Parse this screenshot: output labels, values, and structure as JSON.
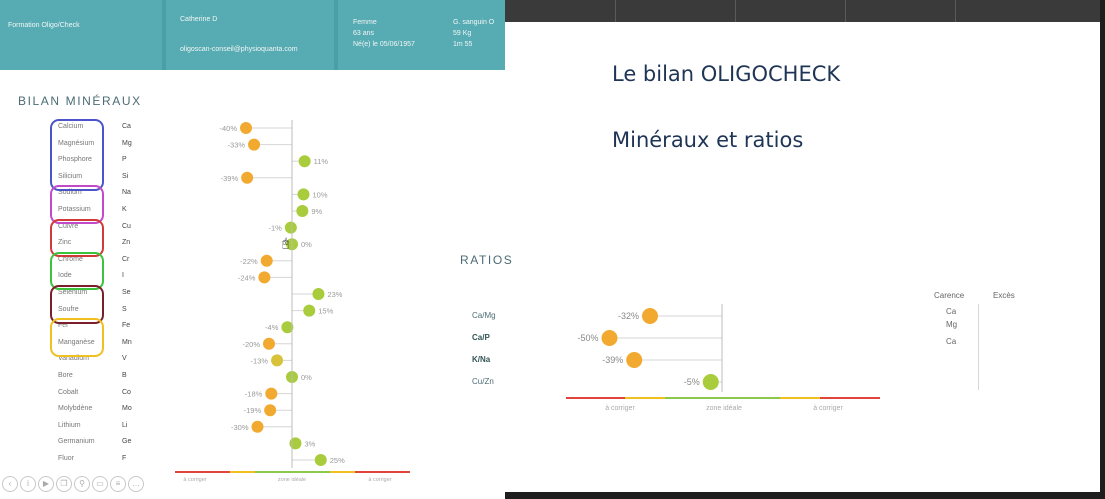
{
  "header": {
    "formation": "Formation Oligo/Check",
    "name": "Catherine D",
    "email": "oligoscan-conseil@physioquanta.com",
    "sex": "Femme",
    "age": "63 ans",
    "born": "Né(e) le 05/06/1957",
    "blood": "G. sanguin O",
    "weight": "59 Kg",
    "height": "1m 55"
  },
  "slide": {
    "title": "Le bilan OLIGOCHECK",
    "subtitle": "Minéraux et ratios"
  },
  "minerals": {
    "title": "BILAN MINÉRAUX",
    "scale_labels": [
      "à corriger",
      "zone idéale",
      "à corriger"
    ],
    "items": [
      {
        "name": "Calcium",
        "symbol": "Ca",
        "value": -40,
        "label": "-40%"
      },
      {
        "name": "Magnésium",
        "symbol": "Mg",
        "value": -33,
        "label": "-33%"
      },
      {
        "name": "Phosphore",
        "symbol": "P",
        "value": 11,
        "label": "11%"
      },
      {
        "name": "Silicium",
        "symbol": "Si",
        "value": -39,
        "label": "-39%"
      },
      {
        "name": "Sodium",
        "symbol": "Na",
        "value": 10,
        "label": "10%"
      },
      {
        "name": "Potassium",
        "symbol": "K",
        "value": 9,
        "label": "9%"
      },
      {
        "name": "Cuivre",
        "symbol": "Cu",
        "value": -1,
        "label": "-1%"
      },
      {
        "name": "Zinc",
        "symbol": "Zn",
        "value": 0,
        "label": "0%"
      },
      {
        "name": "Chrome",
        "symbol": "Cr",
        "value": -22,
        "label": "-22%"
      },
      {
        "name": "Iode",
        "symbol": "I",
        "value": -24,
        "label": "-24%"
      },
      {
        "name": "Sélénium",
        "symbol": "Se",
        "value": 23,
        "label": "23%"
      },
      {
        "name": "Soufre",
        "symbol": "S",
        "value": 15,
        "label": "15%"
      },
      {
        "name": "Fer",
        "symbol": "Fe",
        "value": -4,
        "label": "-4%"
      },
      {
        "name": "Manganèse",
        "symbol": "Mn",
        "value": -20,
        "label": "-20%"
      },
      {
        "name": "Vanadium",
        "symbol": "V",
        "value": -13,
        "label": "-13%"
      },
      {
        "name": "Bore",
        "symbol": "B",
        "value": 0,
        "label": "0%"
      },
      {
        "name": "Cobalt",
        "symbol": "Co",
        "value": -18,
        "label": "-18%"
      },
      {
        "name": "Molybdène",
        "symbol": "Mo",
        "value": -19,
        "label": "-19%"
      },
      {
        "name": "Lithium",
        "symbol": "Li",
        "value": -30,
        "label": "-30%"
      },
      {
        "name": "Germanium",
        "symbol": "Ge",
        "value": 3,
        "label": "3%"
      },
      {
        "name": "Fluor",
        "symbol": "F",
        "value": 25,
        "label": "25%"
      }
    ],
    "groups": [
      {
        "rows": [
          0,
          3
        ],
        "color": "#4a56c8"
      },
      {
        "rows": [
          4,
          5
        ],
        "color": "#c24ac8"
      },
      {
        "rows": [
          6,
          7
        ],
        "color": "#d23a3a"
      },
      {
        "rows": [
          8,
          9
        ],
        "color": "#3cc33c"
      },
      {
        "rows": [
          10,
          11
        ],
        "color": "#7a1f2a"
      },
      {
        "rows": [
          12,
          13
        ],
        "color": "#f0c020"
      }
    ]
  },
  "ratios": {
    "title": "RATIOS",
    "scale_labels": [
      "à corriger",
      "zone idéale",
      "à corriger"
    ],
    "items": [
      {
        "name": "Ca/Mg",
        "value": -32,
        "label": "-32%",
        "bold": false
      },
      {
        "name": "Ca/P",
        "value": -50,
        "label": "-50%",
        "bold": true
      },
      {
        "name": "K/Na",
        "value": -39,
        "label": "-39%",
        "bold": true
      },
      {
        "name": "Cu/Zn",
        "value": -5,
        "label": "-5%",
        "bold": false
      }
    ],
    "carence_header": "Carence",
    "exces_header": "Excès",
    "carence": [
      "Ca",
      "Mg",
      "Ca"
    ]
  },
  "colors": {
    "header_teal": "#4a9ea5",
    "orange": "#f2a930",
    "green": "#a8cc3c",
    "scale_red": "#e0443a",
    "scale_yellow": "#f0c020",
    "scale_green": "#8cc84a"
  },
  "toolbar": {
    "icons": [
      "back-icon",
      "info-icon",
      "play-icon",
      "copy-icon",
      "search-icon",
      "window-icon",
      "menu-icon",
      "more-icon"
    ]
  }
}
